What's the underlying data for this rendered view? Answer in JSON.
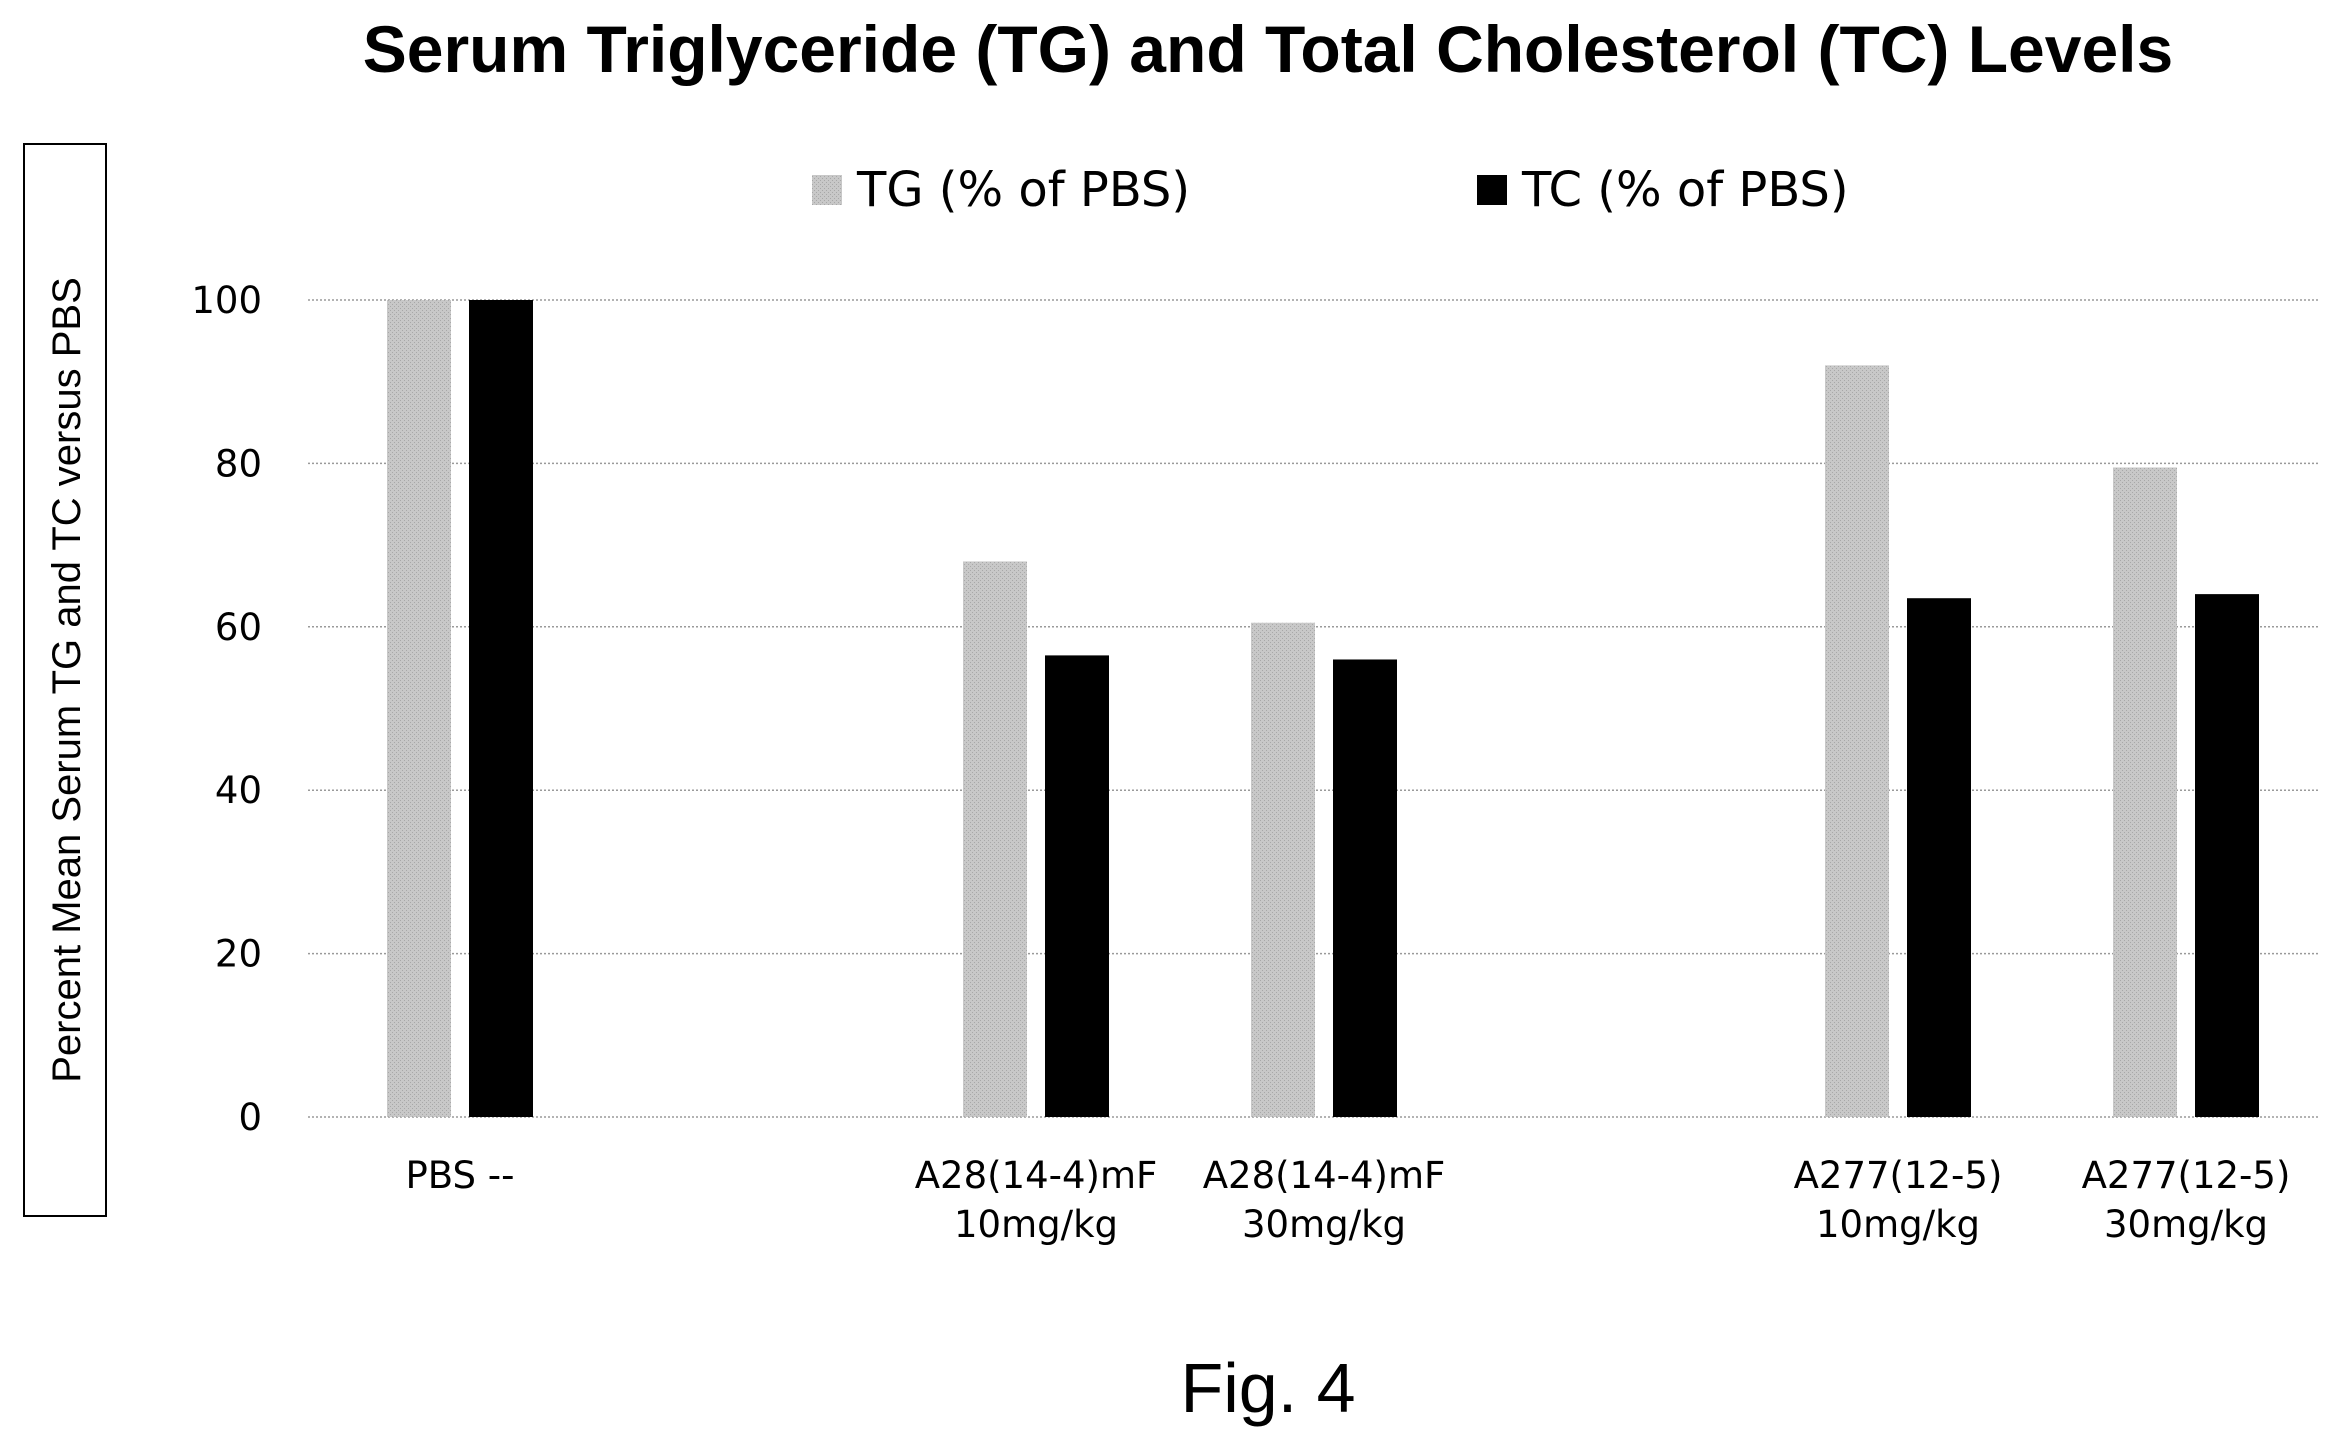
{
  "chart_data": {
    "type": "bar",
    "title": "Serum Triglyceride (TG) and Total Cholesterol (TC) Levels",
    "ylabel": "Percent Mean Serum TG and TC versus PBS",
    "xlabel": "",
    "ylim": [
      0,
      100
    ],
    "yticks": [
      0,
      20,
      40,
      60,
      80,
      100
    ],
    "grid": true,
    "legend_position": "top-center",
    "categories": [
      [
        "PBS --"
      ],
      [
        "A28(14-4)mF",
        "10mg/kg"
      ],
      [
        "A28(14-4)mF",
        "30mg/kg"
      ],
      [
        "A277(12-5)",
        "10mg/kg"
      ],
      [
        "A277(12-5)",
        "30mg/kg"
      ]
    ],
    "series": [
      {
        "name": "TG (% of PBS)",
        "color": "#c4c4c4",
        "values": [
          100,
          68,
          60.5,
          92,
          79.5
        ]
      },
      {
        "name": "TC (% of PBS)",
        "color": "#000000",
        "values": [
          100,
          56.5,
          56,
          63.5,
          64
        ]
      }
    ]
  },
  "caption": "Fig. 4"
}
